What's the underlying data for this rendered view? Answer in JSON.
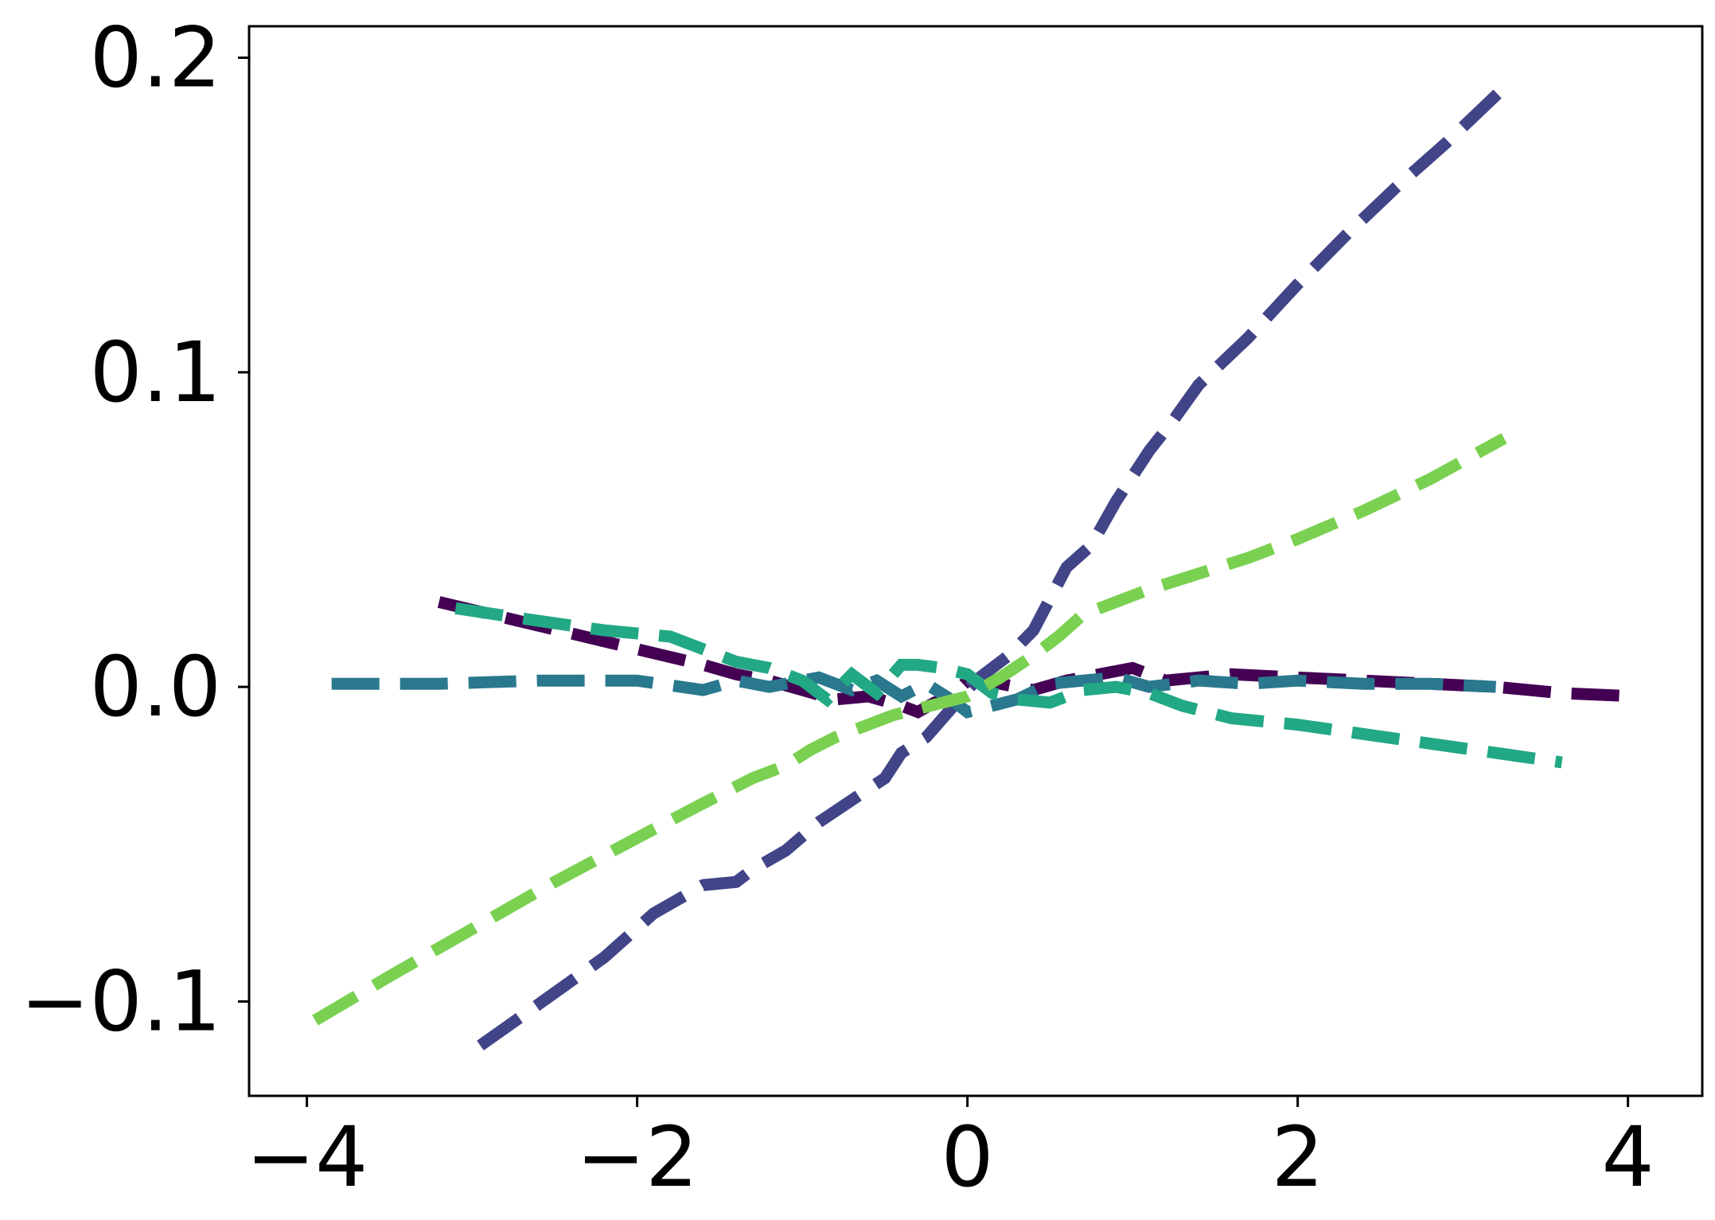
{
  "chart_data": {
    "type": "line",
    "title": "",
    "xlabel": "",
    "ylabel": "",
    "xlim": [
      -4.35,
      4.45
    ],
    "ylim": [
      -0.13,
      0.21
    ],
    "grid": false,
    "legend": "none",
    "x_ticks": [
      -4,
      -2,
      0,
      2,
      4
    ],
    "x_tick_labels": [
      "−4",
      "−2",
      "0",
      "2",
      "4"
    ],
    "y_ticks": [
      -0.1,
      0.0,
      0.1,
      0.2
    ],
    "y_tick_labels": [
      "−0.1",
      "0.0",
      "0.1",
      "0.2"
    ],
    "series": [
      {
        "color": "#440154",
        "x": [
          -3.2,
          -2.8,
          -2.4,
          -2.0,
          -1.6,
          -1.4,
          -1.2,
          -1.0,
          -0.8,
          -0.6,
          -0.4,
          -0.3,
          -0.2,
          -0.1,
          0.0,
          0.2,
          0.4,
          0.6,
          0.8,
          1.0,
          1.2,
          1.6,
          2.0,
          2.4,
          2.8,
          3.2,
          3.6,
          4.05
        ],
        "y": [
          0.027,
          0.022,
          0.017,
          0.012,
          0.007,
          0.004,
          0.002,
          -0.001,
          -0.004,
          -0.003,
          -0.006,
          -0.008,
          -0.005,
          -0.003,
          0.002,
          0.001,
          -0.001,
          0.002,
          0.004,
          0.006,
          0.002,
          0.004,
          0.003,
          0.002,
          0.001,
          0.0,
          -0.002,
          -0.003
        ]
      },
      {
        "color": "#414487",
        "x": [
          -2.95,
          -2.6,
          -2.2,
          -1.9,
          -1.6,
          -1.4,
          -1.3,
          -1.1,
          -0.9,
          -0.7,
          -0.5,
          -0.4,
          -0.25,
          -0.1,
          0.05,
          0.25,
          0.4,
          0.5,
          0.6,
          0.75,
          0.9,
          1.1,
          1.25,
          1.4,
          1.7,
          2.0,
          2.3,
          2.6,
          2.9,
          3.3
        ],
        "y": [
          -0.114,
          -0.101,
          -0.086,
          -0.072,
          -0.063,
          -0.062,
          -0.058,
          -0.052,
          -0.043,
          -0.036,
          -0.029,
          -0.021,
          -0.016,
          -0.007,
          0.002,
          0.01,
          0.018,
          0.028,
          0.038,
          0.045,
          0.059,
          0.075,
          0.085,
          0.096,
          0.111,
          0.128,
          0.144,
          0.159,
          0.173,
          0.193
        ]
      },
      {
        "color": "#2A788E",
        "x": [
          -3.85,
          -3.2,
          -2.6,
          -2.0,
          -1.6,
          -1.4,
          -1.2,
          -0.9,
          -0.7,
          -0.55,
          -0.4,
          -0.25,
          -0.1,
          0.0,
          0.15,
          0.3,
          0.5,
          0.7,
          0.9,
          1.1,
          1.4,
          1.7,
          2.0,
          2.4,
          2.8,
          3.2
        ],
        "y": [
          0.001,
          0.001,
          0.002,
          0.002,
          -0.001,
          0.002,
          0.0,
          0.003,
          -0.001,
          0.002,
          -0.003,
          0.001,
          -0.004,
          -0.008,
          -0.006,
          -0.004,
          0.001,
          0.002,
          0.003,
          0.0,
          0.002,
          0.001,
          0.002,
          0.001,
          0.001,
          0.0
        ]
      },
      {
        "color": "#22A884",
        "x": [
          -3.1,
          -2.6,
          -2.2,
          -1.8,
          -1.6,
          -1.4,
          -1.2,
          -1.0,
          -0.85,
          -0.7,
          -0.55,
          -0.4,
          -0.3,
          -0.15,
          0.0,
          0.15,
          0.3,
          0.5,
          0.7,
          0.9,
          1.1,
          1.3,
          1.6,
          2.0,
          2.4,
          2.8,
          3.2,
          3.6
        ],
        "y": [
          0.025,
          0.021,
          0.018,
          0.016,
          0.012,
          0.008,
          0.006,
          0.002,
          -0.004,
          0.004,
          -0.002,
          0.007,
          0.007,
          0.006,
          0.004,
          -0.002,
          -0.004,
          -0.005,
          -0.001,
          0.0,
          -0.002,
          -0.006,
          -0.01,
          -0.012,
          -0.015,
          -0.018,
          -0.021,
          -0.024
        ]
      },
      {
        "color": "#7AD151",
        "x": [
          -3.95,
          -3.5,
          -3.0,
          -2.5,
          -2.0,
          -1.6,
          -1.3,
          -1.1,
          -0.95,
          -0.8,
          -0.6,
          -0.45,
          -0.3,
          -0.15,
          0.0,
          0.2,
          0.4,
          0.55,
          0.7,
          0.9,
          1.1,
          1.4,
          1.7,
          2.0,
          2.4,
          2.8,
          3.25
        ],
        "y": [
          -0.106,
          -0.092,
          -0.077,
          -0.062,
          -0.048,
          -0.037,
          -0.029,
          -0.025,
          -0.02,
          -0.016,
          -0.012,
          -0.009,
          -0.007,
          -0.005,
          -0.003,
          0.003,
          0.01,
          0.016,
          0.023,
          0.027,
          0.031,
          0.036,
          0.041,
          0.047,
          0.056,
          0.066,
          0.079
        ]
      }
    ]
  }
}
